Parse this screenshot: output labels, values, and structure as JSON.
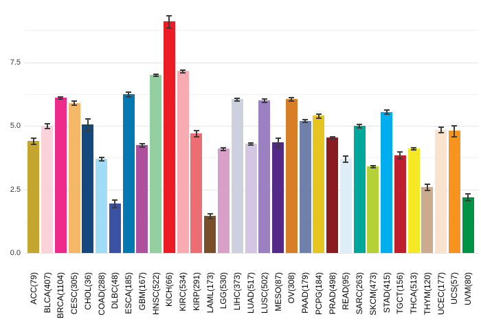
{
  "figure": {
    "background": "#ffffff",
    "title": ""
  },
  "chart_data": {
    "type": "bar",
    "title": "",
    "xlabel": "",
    "ylabel": "",
    "legend": null,
    "grid": "horizontal gridlines, minor every 1.25, major every 2.5",
    "error_bars": true,
    "error_bar_color": "#3a3a3a",
    "y_axis": {
      "tick_labels": [
        "0.0",
        "2.5",
        "5.0",
        "7.5"
      ],
      "tick_values": [
        0,
        2.5,
        5.0,
        7.5
      ],
      "minor_step": 1.25,
      "ylim": [
        0,
        9.65
      ]
    },
    "categories": [
      "ACC(79)",
      "BLCA(407)",
      "BRCA(1104)",
      "CESC(305)",
      "CHOL(36)",
      "COAD(288)",
      "DLBC(48)",
      "ESCA(185)",
      "GBM(167)",
      "HNSC(522)",
      "KICH(66)",
      "KIRC(534)",
      "KIRP(291)",
      "LAML(173)",
      "LGG(530)",
      "LIHC(373)",
      "LUAD(517)",
      "LUSC(502)",
      "MESO(87)",
      "OV(308)",
      "PAAD(179)",
      "PCPG(184)",
      "PRAD(498)",
      "READ(95)",
      "SARC(263)",
      "SKCM(473)",
      "STAD(415)",
      "TGCT(156)",
      "THCA(513)",
      "THYM(120)",
      "UCEC(177)",
      "UCS(57)",
      "UVM(80)"
    ],
    "values": [
      4.4,
      5.0,
      6.1,
      5.9,
      5.05,
      3.7,
      1.95,
      6.25,
      4.25,
      7.0,
      9.1,
      7.15,
      4.7,
      1.45,
      4.1,
      6.05,
      4.3,
      6.0,
      4.35,
      6.05,
      5.2,
      5.4,
      4.55,
      3.7,
      5.0,
      3.4,
      5.55,
      3.85,
      4.1,
      2.6,
      4.85,
      4.8,
      2.2
    ],
    "errors": [
      0.13,
      0.1,
      0.05,
      0.09,
      0.25,
      0.08,
      0.16,
      0.11,
      0.08,
      0.06,
      0.25,
      0.06,
      0.14,
      0.11,
      0.06,
      0.07,
      0.06,
      0.07,
      0.18,
      0.08,
      0.06,
      0.09,
      0.05,
      0.13,
      0.09,
      0.06,
      0.09,
      0.14,
      0.05,
      0.14,
      0.12,
      0.22,
      0.15
    ],
    "bar_colors": [
      "#c4a52e",
      "#f9d2da",
      "#ee2a8b",
      "#f5b768",
      "#15497e",
      "#9fdcf5",
      "#3b51a3",
      "#0578b1",
      "#ad509e",
      "#93cfa1",
      "#ec1c24",
      "#f8abb0",
      "#ec6e72",
      "#784f28",
      "#d89fc8",
      "#cdd0de",
      "#d4c6e3",
      "#9b81c2",
      "#542a89",
      "#d87e27",
      "#6f80aa",
      "#e6c521",
      "#8a1c21",
      "#ddeef8",
      "#00a79b",
      "#b4d235",
      "#00adee",
      "#bf1e2d",
      "#f5e926",
      "#cbab8e",
      "#fae3cc",
      "#f7941f",
      "#009345"
    ]
  }
}
